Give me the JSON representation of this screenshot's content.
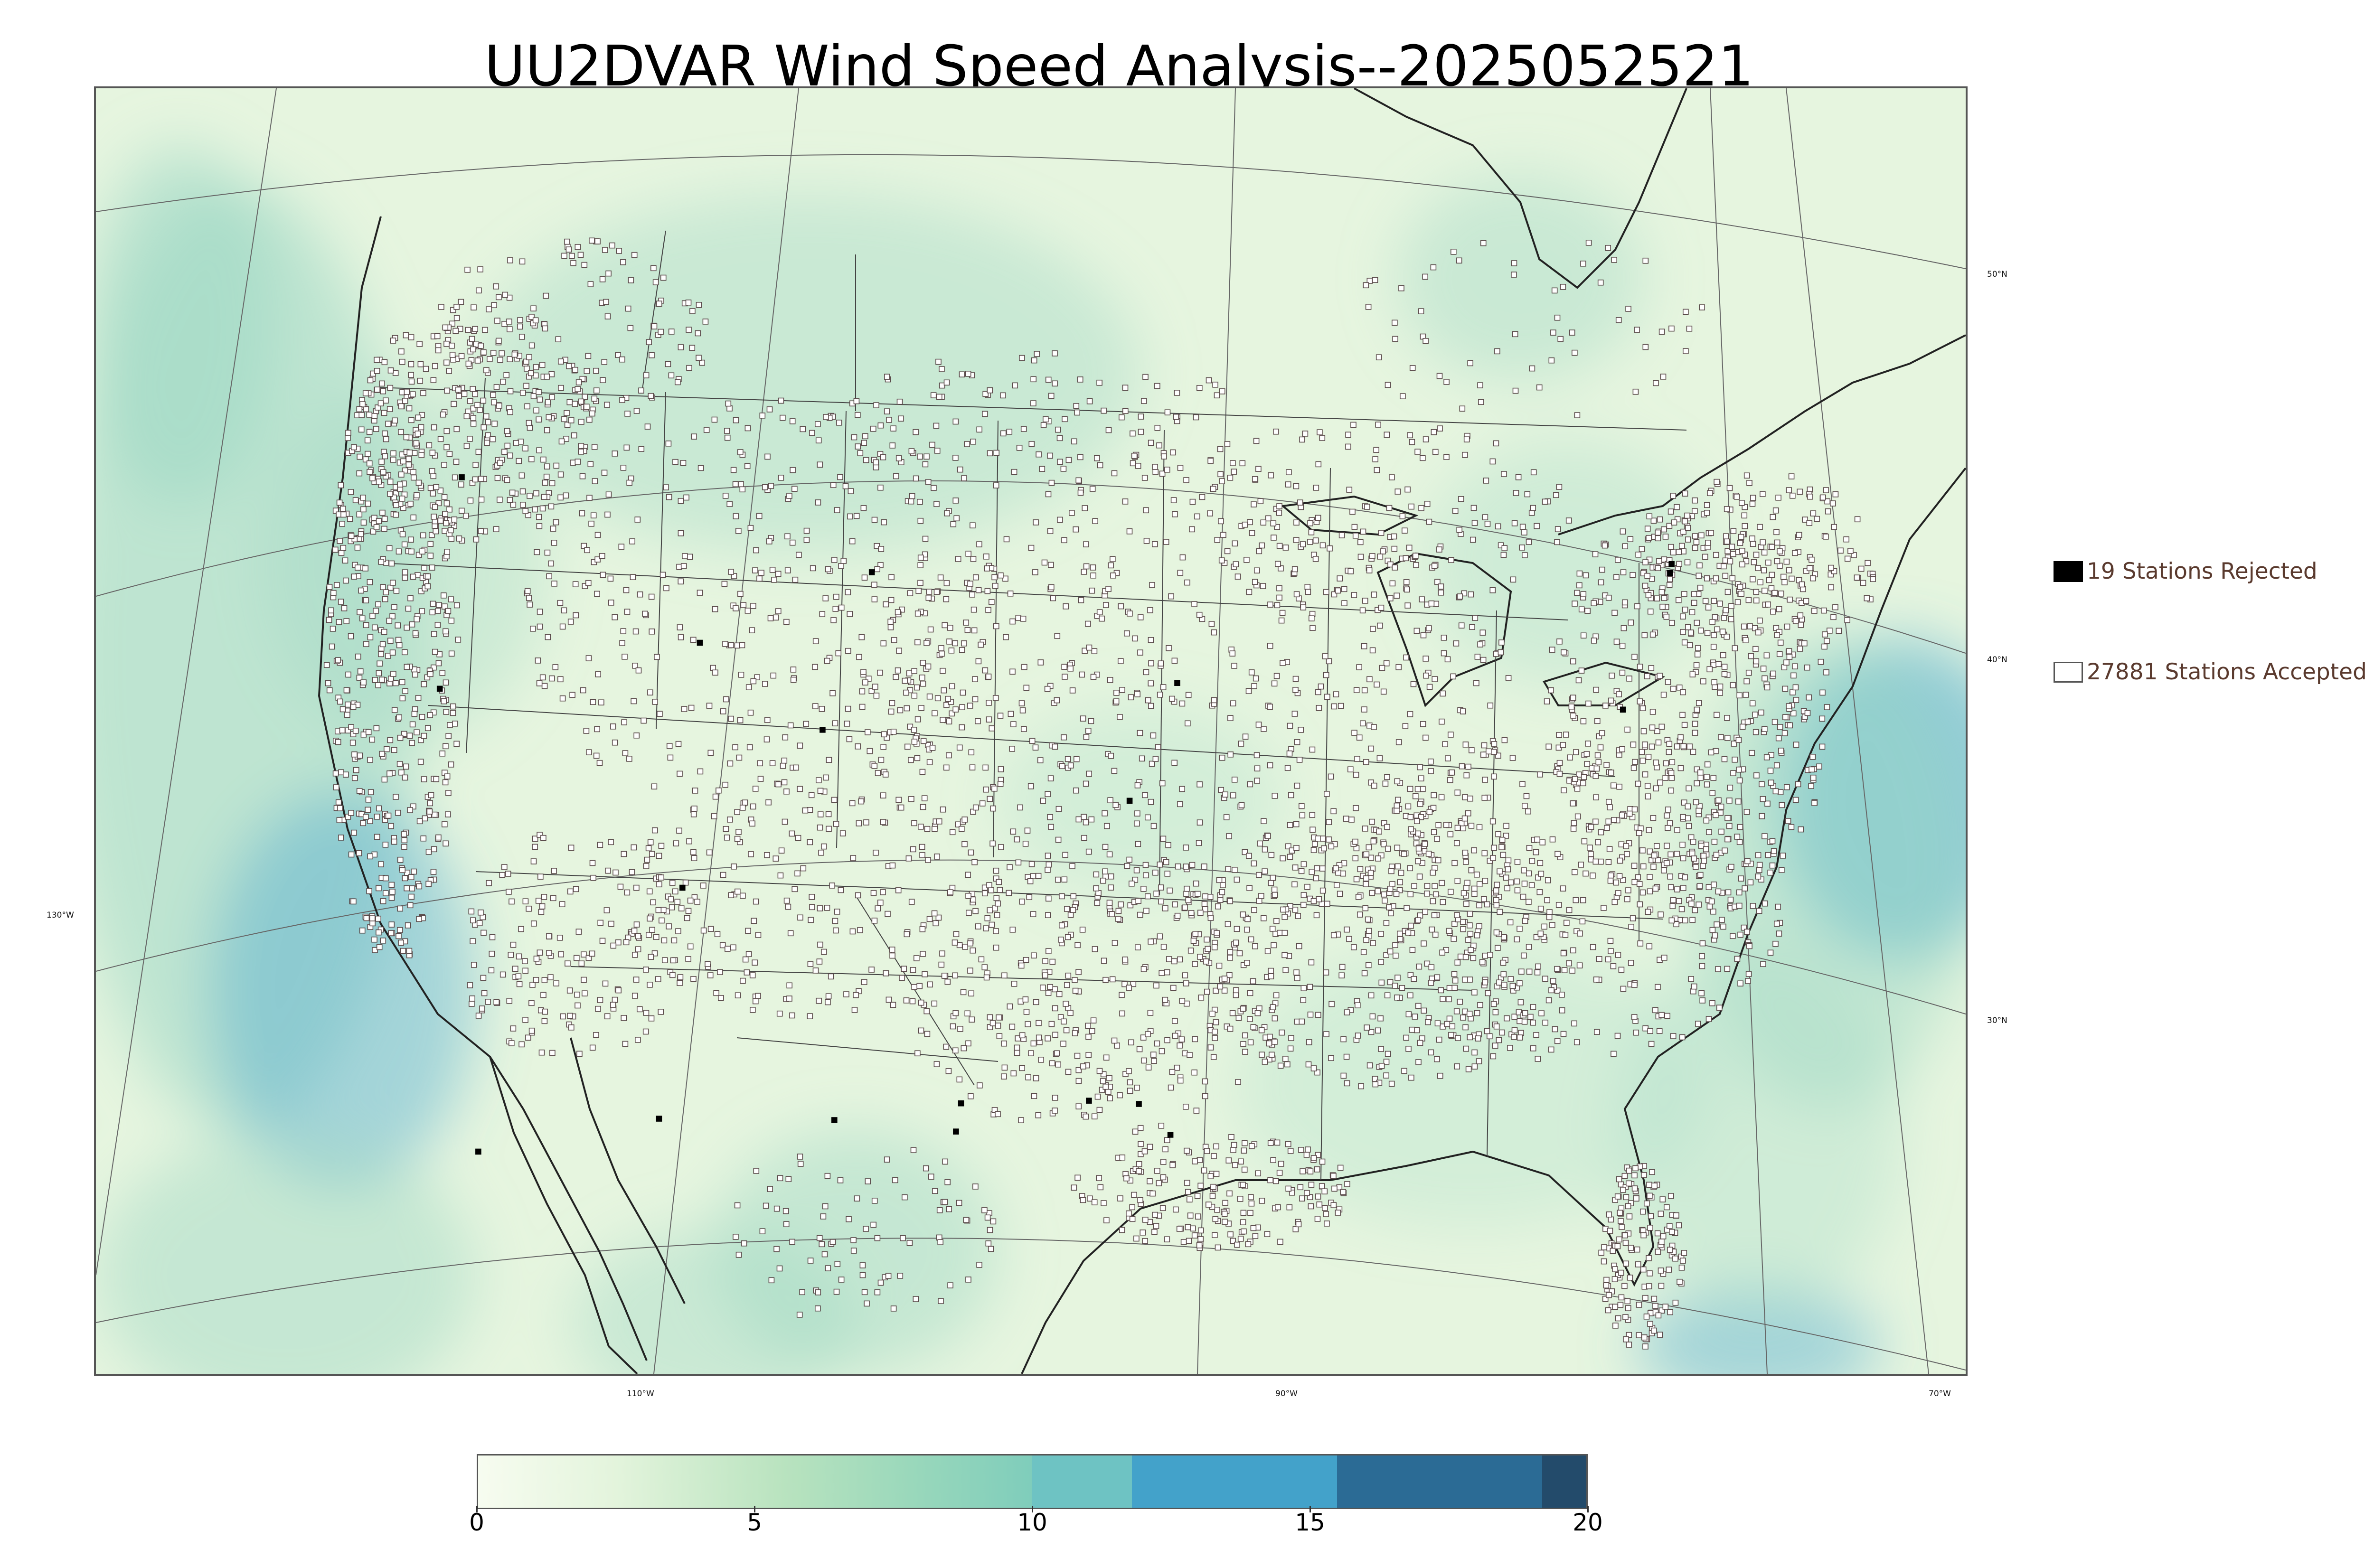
{
  "title": "UU2DVAR Wind Speed Analysis--2025052521",
  "gridlines": {
    "lat_labels": [
      "50°N",
      "40°N",
      "30°N"
    ],
    "lon_labels": [
      "130°W",
      "110°W",
      "90°W",
      "70°W"
    ]
  },
  "legend": {
    "rejected": "19 Stations Rejected",
    "accepted": "27881 Stations Accepted"
  },
  "colorbar": {
    "min": 0,
    "max": 20,
    "ticks": [
      "0",
      "5",
      "10",
      "15",
      "20"
    ],
    "segments": [
      {
        "from": 0,
        "to": 10,
        "color_from": "#f7fcf0",
        "color_to": "#7fcdbb"
      },
      {
        "from": 10,
        "to": 11.8,
        "color": "#6ec3c3"
      },
      {
        "from": 11.8,
        "to": 15.5,
        "color": "#43a2ca"
      },
      {
        "from": 15.5,
        "to": 19.2,
        "color": "#2b6b95"
      },
      {
        "from": 19.2,
        "to": 20,
        "color": "#234b6b"
      }
    ]
  },
  "colors": {
    "land_base": "#e3f3dc",
    "ocean_wind": "#9dd7c4",
    "high_wind": "#52aed0",
    "station_accepted": "#ffffff",
    "station_rejected": "#000000"
  }
}
